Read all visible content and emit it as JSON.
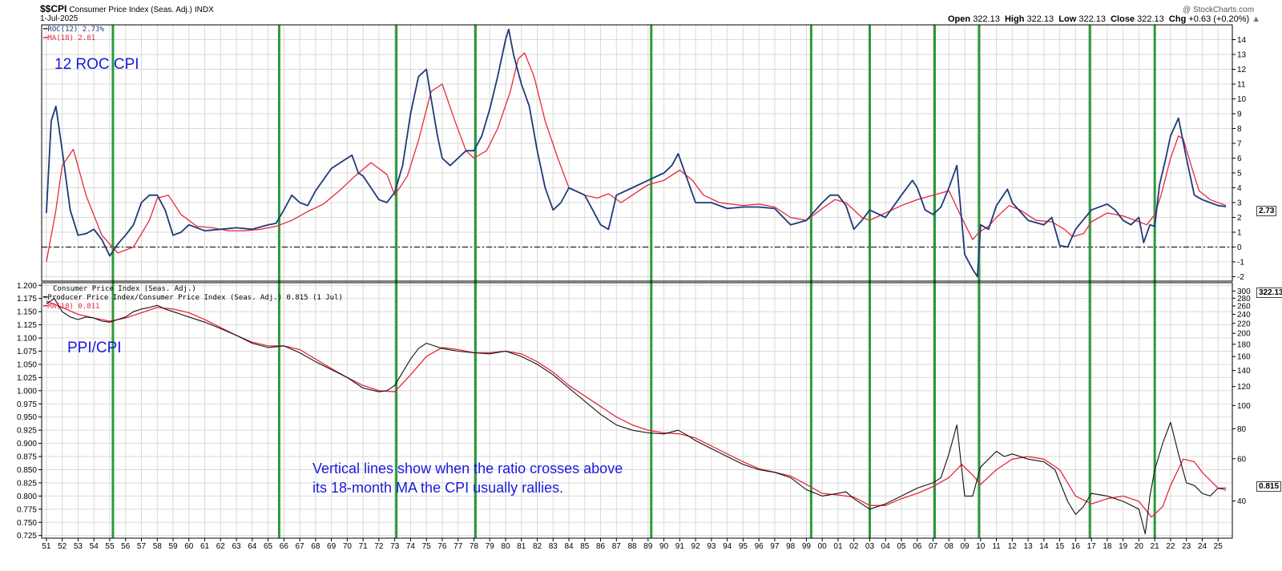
{
  "header": {
    "symbol": "$$CPI",
    "name": "Consumer Price Index (Seas. Adj.)",
    "exchange": "INDX",
    "date": "1-Jul-2025",
    "watermark": "@ StockCharts.com",
    "open_label": "Open",
    "open": "322.13",
    "high_label": "High",
    "high": "322.13",
    "low_label": "Low",
    "low": "322.13",
    "close_label": "Close",
    "close": "322.13",
    "chg_label": "Chg",
    "chg": "+0.63 (+0.20%)"
  },
  "annotations": {
    "top_title": "12 ROC CPI",
    "bottom_title": "PPI/CPI",
    "note_line1": "Vertical lines show when the ratio crosses above",
    "note_line2": "its 18-month MA the CPI usually rallies."
  },
  "colors": {
    "roc_line": "#1f3a78",
    "ma_line": "#e8283c",
    "ratio_line": "#111111",
    "signal_line": "#2a9a3a",
    "grid": "#d9d9d9",
    "annotation_text": "#1a1adc"
  },
  "chart_data": [
    {
      "type": "line",
      "panel": "top",
      "series": [
        {
          "name": "ROC(12) 2.73%",
          "x": [
            1951.0,
            1951.3,
            1951.6,
            1952.0,
            1952.5,
            1953.0,
            1953.5,
            1954.0,
            1954.5,
            1955.0,
            1955.5,
            1956.0,
            1956.5,
            1957.0,
            1957.5,
            1958.0,
            1958.5,
            1959.0,
            1959.5,
            1960.0,
            1961.0,
            1962.0,
            1963.0,
            1964.0,
            1965.0,
            1965.5,
            1966.0,
            1966.5,
            1967.0,
            1967.5,
            1968.0,
            1969.0,
            1970.0,
            1970.3,
            1970.7,
            1971.0,
            1971.5,
            1972.0,
            1972.5,
            1973.0,
            1973.5,
            1974.0,
            1974.5,
            1975.0,
            1975.3,
            1975.7,
            1976.0,
            1976.5,
            1977.0,
            1977.5,
            1978.0,
            1978.5,
            1979.0,
            1979.5,
            1980.0,
            1980.2,
            1980.5,
            1981.0,
            1981.5,
            1982.0,
            1982.5,
            1983.0,
            1983.5,
            1984.0,
            1985.0,
            1986.0,
            1986.5,
            1987.0,
            1988.0,
            1989.0,
            1990.0,
            1990.5,
            1990.9,
            1991.5,
            1992.0,
            1993.0,
            1994.0,
            1995.0,
            1996.0,
            1997.0,
            1998.0,
            1999.0,
            2000.0,
            2000.5,
            2001.0,
            2001.5,
            2002.0,
            2002.5,
            2003.0,
            2004.0,
            2005.0,
            2005.7,
            2006.0,
            2006.5,
            2007.0,
            2007.5,
            2008.0,
            2008.5,
            2009.0,
            2009.5,
            2009.8,
            2010.0,
            2010.5,
            2011.0,
            2011.7,
            2012.0,
            2013.0,
            2014.0,
            2014.5,
            2015.0,
            2015.5,
            2016.0,
            2017.0,
            2018.0,
            2018.5,
            2019.0,
            2019.5,
            2020.0,
            2020.3,
            2020.7,
            2021.0,
            2021.3,
            2021.7,
            2022.0,
            2022.5,
            2023.0,
            2023.5,
            2024.0,
            2024.5,
            2025.0,
            2025.5
          ],
          "y": [
            2.3,
            8.5,
            9.5,
            6.5,
            2.5,
            0.8,
            0.9,
            1.2,
            0.5,
            -0.6,
            0.2,
            0.8,
            1.5,
            3.0,
            3.5,
            3.5,
            2.5,
            0.8,
            1.0,
            1.5,
            1.1,
            1.2,
            1.3,
            1.2,
            1.5,
            1.6,
            2.5,
            3.5,
            3.0,
            2.8,
            3.8,
            5.3,
            6.0,
            6.2,
            5.0,
            4.8,
            4.0,
            3.2,
            3.0,
            3.7,
            5.5,
            9.0,
            11.5,
            12.0,
            10.0,
            7.5,
            6.0,
            5.5,
            6.0,
            6.5,
            6.5,
            7.5,
            9.3,
            11.5,
            14.0,
            14.7,
            13.0,
            11.0,
            9.5,
            6.5,
            4.0,
            2.5,
            3.0,
            4.0,
            3.5,
            1.5,
            1.2,
            3.5,
            4.0,
            4.5,
            5.0,
            5.5,
            6.3,
            4.5,
            3.0,
            3.0,
            2.6,
            2.7,
            2.7,
            2.6,
            1.5,
            1.8,
            3.0,
            3.5,
            3.5,
            2.8,
            1.2,
            1.8,
            2.5,
            2.0,
            3.5,
            4.5,
            4.0,
            2.5,
            2.2,
            2.7,
            4.0,
            5.5,
            -0.5,
            -1.5,
            -2.0,
            1.5,
            1.2,
            2.8,
            3.9,
            3.0,
            1.8,
            1.5,
            2.0,
            0.1,
            0.0,
            1.2,
            2.5,
            2.9,
            2.5,
            1.8,
            1.5,
            2.0,
            0.3,
            1.5,
            1.4,
            4.2,
            6.0,
            7.5,
            8.7,
            6.0,
            3.5,
            3.2,
            3.0,
            2.8,
            2.73
          ]
        },
        {
          "name": "MA(18) 2.81",
          "x": [
            1951.0,
            1951.6,
            1952.0,
            1952.7,
            1953.5,
            1954.5,
            1955.5,
            1956.5,
            1957.5,
            1958.0,
            1958.7,
            1959.5,
            1960.5,
            1961.5,
            1962.5,
            1963.5,
            1964.5,
            1965.5,
            1966.5,
            1967.5,
            1968.5,
            1969.5,
            1970.5,
            1971.5,
            1972.5,
            1973.0,
            1973.8,
            1974.5,
            1975.3,
            1976.0,
            1976.8,
            1977.5,
            1978.0,
            1978.8,
            1979.5,
            1980.3,
            1980.8,
            1981.2,
            1981.8,
            1982.5,
            1983.3,
            1984.0,
            1985.0,
            1985.8,
            1986.5,
            1987.3,
            1988.0,
            1989.0,
            1990.0,
            1991.0,
            1991.8,
            1992.5,
            1993.5,
            1995.0,
            1996.0,
            1997.0,
            1998.0,
            1999.0,
            2000.0,
            2000.8,
            2001.5,
            2002.5,
            2003.0,
            2004.0,
            2005.0,
            2006.0,
            2007.0,
            2008.0,
            2008.8,
            2009.5,
            2009.9,
            2010.5,
            2011.0,
            2011.8,
            2012.5,
            2013.5,
            2014.5,
            2015.3,
            2015.8,
            2016.5,
            2017.0,
            2018.0,
            2019.0,
            2020.0,
            2020.5,
            2021.0,
            2021.4,
            2022.0,
            2022.5,
            2022.8,
            2023.3,
            2023.8,
            2024.5,
            2025.5
          ],
          "y": [
            -1.0,
            2.5,
            5.5,
            6.6,
            3.5,
            0.8,
            -0.4,
            0.0,
            1.8,
            3.3,
            3.5,
            2.2,
            1.4,
            1.3,
            1.1,
            1.1,
            1.2,
            1.4,
            1.8,
            2.4,
            2.9,
            3.8,
            4.8,
            5.7,
            4.9,
            3.5,
            4.8,
            7.2,
            10.5,
            11.0,
            8.5,
            6.5,
            6.0,
            6.5,
            8.0,
            10.5,
            12.7,
            13.1,
            11.5,
            8.5,
            6.0,
            4.0,
            3.5,
            3.3,
            3.6,
            3.0,
            3.5,
            4.2,
            4.5,
            5.2,
            4.5,
            3.5,
            3.0,
            2.8,
            2.9,
            2.7,
            2.0,
            1.8,
            2.6,
            3.2,
            3.0,
            2.0,
            1.8,
            2.3,
            2.8,
            3.2,
            3.5,
            3.8,
            2.0,
            0.5,
            1.0,
            1.4,
            2.0,
            2.8,
            2.5,
            1.8,
            1.7,
            1.2,
            0.7,
            0.9,
            1.7,
            2.3,
            2.1,
            1.7,
            1.5,
            2.2,
            3.5,
            6.0,
            7.5,
            7.3,
            5.5,
            3.8,
            3.2,
            2.81
          ]
        }
      ],
      "legend": [
        "ROC(12) 2.73%",
        "MA(18) 2.81"
      ],
      "ylim": [
        -2.3,
        15
      ],
      "yticks": [
        -2,
        -1,
        0,
        1,
        2,
        3,
        4,
        5,
        6,
        7,
        8,
        9,
        10,
        11,
        12,
        13,
        14
      ],
      "zero_line": "dash-dot",
      "last_value_label": "2.73",
      "grid": true
    },
    {
      "type": "line",
      "panel": "bottom",
      "series": [
        {
          "name": "Producer Price Index/Consumer Price Index (Seas. Adj.) 0.815 (1 Jul)",
          "x": [
            1951.0,
            1951.5,
            1952.0,
            1952.5,
            1953.0,
            1953.5,
            1954.0,
            1954.5,
            1955.0,
            1955.5,
            1956.0,
            1956.5,
            1957.0,
            1957.5,
            1958.0,
            1958.5,
            1959.0,
            1959.5,
            1960.0,
            1961.0,
            1962.0,
            1963.0,
            1964.0,
            1965.0,
            1966.0,
            1967.0,
            1968.0,
            1969.0,
            1970.0,
            1971.0,
            1972.0,
            1972.5,
            1973.0,
            1973.5,
            1974.0,
            1974.5,
            1975.0,
            1975.5,
            1976.0,
            1977.0,
            1978.0,
            1979.0,
            1980.0,
            1981.0,
            1982.0,
            1983.0,
            1984.0,
            1985.0,
            1986.0,
            1987.0,
            1988.0,
            1989.0,
            1990.0,
            1990.9,
            1991.5,
            1992.0,
            1993.0,
            1994.0,
            1995.0,
            1996.0,
            1997.0,
            1998.0,
            1999.0,
            2000.0,
            2001.0,
            2001.5,
            2002.0,
            2003.0,
            2004.0,
            2005.0,
            2006.0,
            2007.0,
            2007.5,
            2008.0,
            2008.5,
            2009.0,
            2009.5,
            2010.0,
            2011.0,
            2011.5,
            2012.0,
            2013.0,
            2014.0,
            2014.7,
            2015.5,
            2016.0,
            2016.5,
            2017.0,
            2018.0,
            2019.0,
            2020.0,
            2020.4,
            2020.7,
            2021.0,
            2021.5,
            2022.0,
            2022.5,
            2023.0,
            2023.5,
            2024.0,
            2024.5,
            2025.0,
            2025.5
          ],
          "y": [
            1.165,
            1.175,
            1.15,
            1.14,
            1.135,
            1.14,
            1.138,
            1.132,
            1.13,
            1.135,
            1.14,
            1.15,
            1.155,
            1.158,
            1.162,
            1.155,
            1.15,
            1.145,
            1.14,
            1.13,
            1.118,
            1.105,
            1.09,
            1.082,
            1.085,
            1.072,
            1.055,
            1.04,
            1.025,
            1.005,
            0.998,
            1.0,
            1.01,
            1.035,
            1.06,
            1.08,
            1.09,
            1.085,
            1.08,
            1.075,
            1.072,
            1.07,
            1.075,
            1.065,
            1.05,
            1.03,
            1.005,
            0.98,
            0.955,
            0.935,
            0.925,
            0.92,
            0.918,
            0.925,
            0.915,
            0.905,
            0.89,
            0.875,
            0.86,
            0.85,
            0.845,
            0.835,
            0.812,
            0.8,
            0.805,
            0.808,
            0.795,
            0.775,
            0.785,
            0.8,
            0.815,
            0.825,
            0.835,
            0.88,
            0.935,
            0.8,
            0.8,
            0.855,
            0.885,
            0.875,
            0.88,
            0.87,
            0.865,
            0.85,
            0.79,
            0.765,
            0.78,
            0.805,
            0.8,
            0.79,
            0.775,
            0.728,
            0.8,
            0.85,
            0.9,
            0.94,
            0.88,
            0.825,
            0.82,
            0.805,
            0.8,
            0.815,
            0.815
          ]
        },
        {
          "name": "MA(18) 0.811",
          "x": [
            1951.0,
            1952.0,
            1953.0,
            1954.0,
            1955.0,
            1956.0,
            1957.0,
            1958.0,
            1959.0,
            1960.0,
            1961.0,
            1962.0,
            1963.0,
            1964.0,
            1965.0,
            1966.0,
            1967.0,
            1968.0,
            1969.0,
            1970.0,
            1971.0,
            1972.0,
            1973.0,
            1974.0,
            1975.0,
            1976.0,
            1977.0,
            1978.0,
            1979.0,
            1980.0,
            1981.0,
            1982.0,
            1983.0,
            1984.0,
            1985.0,
            1986.0,
            1987.0,
            1988.0,
            1989.0,
            1990.0,
            1991.0,
            1992.0,
            1993.0,
            1994.0,
            1995.0,
            1996.0,
            1997.0,
            1998.0,
            1999.0,
            2000.0,
            2001.0,
            2002.0,
            2003.0,
            2004.0,
            2005.0,
            2006.0,
            2007.0,
            2008.0,
            2008.8,
            2009.5,
            2010.0,
            2011.0,
            2012.0,
            2013.0,
            2014.0,
            2015.0,
            2016.0,
            2017.0,
            2018.0,
            2019.0,
            2020.0,
            2020.8,
            2021.5,
            2022.0,
            2022.8,
            2023.5,
            2024.0,
            2025.0,
            2025.5
          ],
          "y": [
            1.17,
            1.158,
            1.145,
            1.138,
            1.132,
            1.138,
            1.148,
            1.158,
            1.155,
            1.148,
            1.135,
            1.12,
            1.105,
            1.092,
            1.085,
            1.085,
            1.078,
            1.06,
            1.042,
            1.025,
            1.01,
            1.0,
            0.998,
            1.03,
            1.065,
            1.082,
            1.078,
            1.072,
            1.072,
            1.075,
            1.07,
            1.055,
            1.035,
            1.01,
            0.99,
            0.97,
            0.95,
            0.935,
            0.925,
            0.92,
            0.918,
            0.91,
            0.895,
            0.88,
            0.865,
            0.852,
            0.845,
            0.838,
            0.822,
            0.805,
            0.802,
            0.798,
            0.782,
            0.782,
            0.795,
            0.805,
            0.818,
            0.835,
            0.86,
            0.84,
            0.822,
            0.85,
            0.87,
            0.875,
            0.87,
            0.85,
            0.8,
            0.785,
            0.795,
            0.8,
            0.79,
            0.76,
            0.78,
            0.82,
            0.87,
            0.865,
            0.845,
            0.815,
            0.811
          ]
        }
      ],
      "legend": [
        "Consumer Price Index (Seas. Adj.)",
        "Producer Price Index/Consumer Price Index (Seas. Adj.) 0.815 (1 Jul)",
        "MA(18) 0.811"
      ],
      "ylim": [
        0.72,
        1.205
      ],
      "yticks_left": [
        "1.200",
        "1.175",
        "1.150",
        "1.125",
        "1.100",
        "1.075",
        "1.050",
        "1.025",
        "1.000",
        "0.975",
        "0.950",
        "0.925",
        "0.900",
        "0.875",
        "0.850",
        "0.825",
        "0.800",
        "0.775",
        "0.750",
        "0.725"
      ],
      "yticks_right": [
        "300",
        "280",
        "260",
        "240",
        "220",
        "200",
        "180",
        "160",
        "140",
        "120",
        "100",
        "80",
        "60",
        "40"
      ],
      "last_value_label": "0.815",
      "cpi_last_label": "322.13",
      "grid": true
    },
    {
      "type": "signal-lines",
      "x_year_ticks": [
        "51",
        "52",
        "53",
        "54",
        "55",
        "56",
        "57",
        "58",
        "59",
        "60",
        "61",
        "62",
        "63",
        "64",
        "65",
        "66",
        "67",
        "68",
        "69",
        "70",
        "71",
        "72",
        "73",
        "74",
        "75",
        "76",
        "77",
        "78",
        "79",
        "80",
        "81",
        "82",
        "83",
        "84",
        "85",
        "86",
        "87",
        "88",
        "89",
        "90",
        "91",
        "92",
        "93",
        "94",
        "95",
        "96",
        "97",
        "98",
        "99",
        "00",
        "01",
        "02",
        "03",
        "04",
        "05",
        "06",
        "07",
        "08",
        "09",
        "10",
        "11",
        "12",
        "13",
        "14",
        "15",
        "16",
        "17",
        "18",
        "19",
        "20",
        "21",
        "22",
        "23",
        "24",
        "25"
      ],
      "x_start_year": 1951,
      "signal_years": [
        1955.2,
        1965.7,
        1973.1,
        1978.1,
        1989.2,
        1999.3,
        2003.0,
        2007.1,
        2009.9,
        2016.9,
        2021.0
      ]
    }
  ]
}
